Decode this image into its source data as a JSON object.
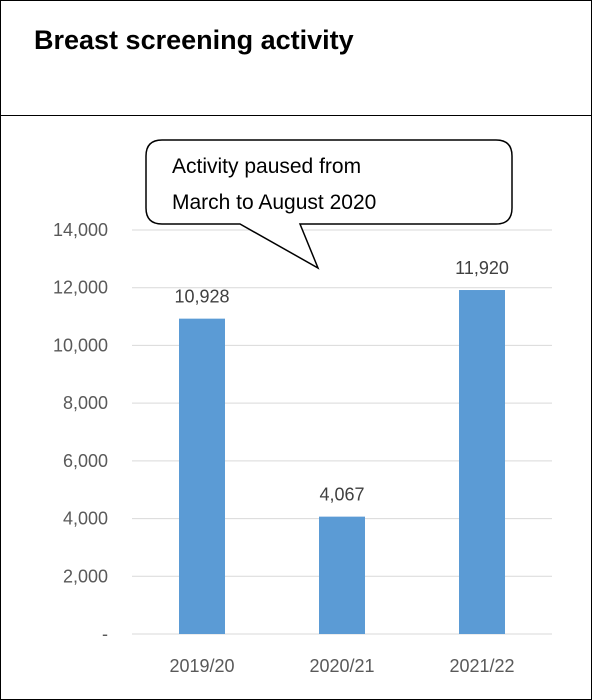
{
  "title": "Breast screening activity",
  "annotation": [
    "Activity paused from",
    "March to August 2020"
  ],
  "chart_data": {
    "type": "bar",
    "title": "Breast screening activity",
    "categories": [
      "2019/20",
      "2020/21",
      "2021/22"
    ],
    "values": [
      10928,
      4067,
      11920
    ],
    "value_labels": [
      "10,928",
      "4,067",
      "11,920"
    ],
    "ylim": [
      0,
      14000
    ],
    "yticks": [
      0,
      2000,
      4000,
      6000,
      8000,
      10000,
      12000,
      14000
    ],
    "ytick_labels": [
      "-",
      "2,000",
      "4,000",
      "6,000",
      "8,000",
      "10,000",
      "12,000",
      "14,000"
    ],
    "grid": true,
    "bar_color": "#5b9bd5",
    "annotation": "Activity paused from March to August 2020"
  }
}
